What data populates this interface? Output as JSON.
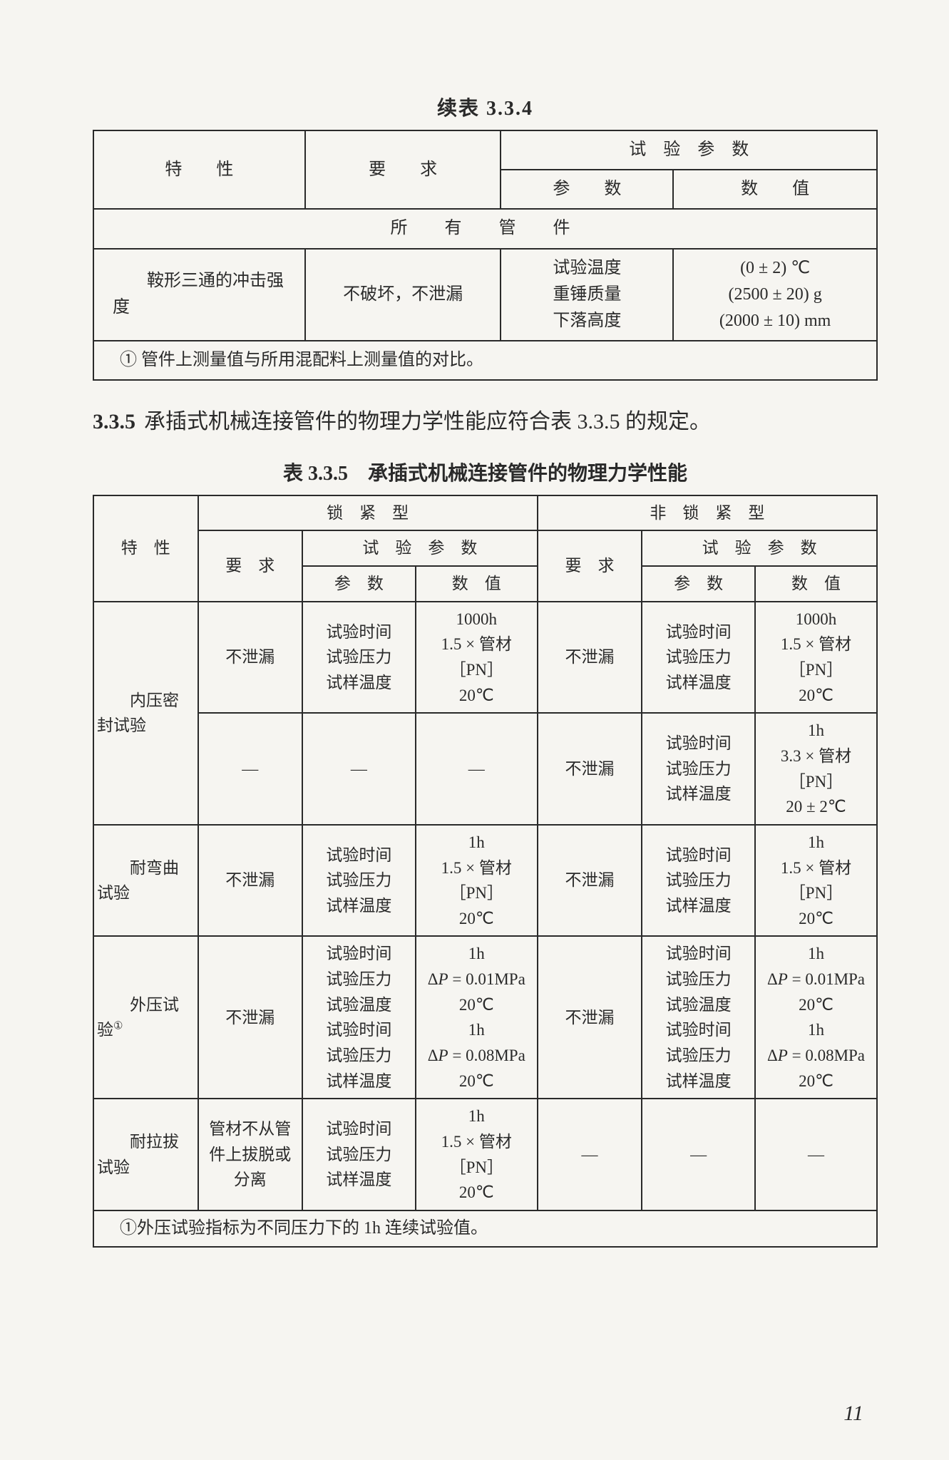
{
  "page_number": "11",
  "table334": {
    "caption": "续表 3.3.4",
    "head": {
      "c1": "特　　性",
      "c2": "要　　求",
      "c3": "试　验　参　数",
      "c3a": "参　　数",
      "c3b": "数　　值"
    },
    "section_row": "所　有　管　件",
    "row": {
      "c1": "　　鞍形三通的冲击强度",
      "c2": "不破坏，不泄漏",
      "c3a": "试验温度\n重锤质量\n下落高度",
      "c3b": "(0 ± 2) ℃\n(2500 ± 20) g\n(2000 ± 10) mm"
    },
    "note": "① 管件上测量值与所用混配料上测量值的对比。"
  },
  "para335": {
    "secnum": "3.3.5",
    "text": "承插式机械连接管件的物理力学性能应符合表 3.3.5 的规定。"
  },
  "table335": {
    "caption": "表 3.3.5　承插式机械连接管件的物理力学性能",
    "head": {
      "c_prop": "特　性",
      "grp_a": "锁　紧　型",
      "grp_b": "非　锁　紧　型",
      "req": "要　求",
      "testparam": "试　验　参　数",
      "param": "参　数",
      "value": "数　值"
    },
    "rows": [
      {
        "prop": "　　内压密封试验",
        "rowspan_prop": 2,
        "a_req": "不泄漏",
        "a_param": "试验时间\n试验压力\n试样温度",
        "a_value": "1000h\n1.5 × 管材［PN］\n20℃",
        "b_req": "不泄漏",
        "b_param": "试验时间\n试验压力\n试样温度",
        "b_value": "1000h\n1.5 × 管材［PN］\n20℃"
      },
      {
        "a_req": "—",
        "a_param": "—",
        "a_value": "—",
        "b_req": "不泄漏",
        "b_param": "试验时间\n试验压力\n试样温度",
        "b_value": "1h\n3.3 × 管材［PN］\n20 ± 2℃"
      },
      {
        "prop": "　　耐弯曲试验",
        "rowspan_prop": 1,
        "a_req": "不泄漏",
        "a_param": "试验时间\n试验压力\n试样温度",
        "a_value": "1h\n1.5 × 管材［PN］\n20℃",
        "b_req": "不泄漏",
        "b_param": "试验时间\n试验压力\n试样温度",
        "b_value": "1h\n1.5 × 管材［PN］\n20℃"
      },
      {
        "prop_html": "　　外压试验<sup>①</sup>",
        "rowspan_prop": 1,
        "a_req": "不泄漏",
        "a_param": "试验时间\n试验压力\n试验温度\n试验时间\n试验压力\n试样温度",
        "a_value_html": "1h\nΔ<span class='it'>P</span> = 0.01MPa\n20℃\n1h\nΔ<span class='it'>P</span> = 0.08MPa\n20℃",
        "b_req": "不泄漏",
        "b_param": "试验时间\n试验压力\n试验温度\n试验时间\n试验压力\n试样温度",
        "b_value_html": "1h\nΔ<span class='it'>P</span> = 0.01MPa\n20℃\n1h\nΔ<span class='it'>P</span> = 0.08MPa\n20℃"
      },
      {
        "prop": "　　耐拉拔试验",
        "rowspan_prop": 1,
        "a_req": "管材不从管件上拔脱或分离",
        "a_param": "试验时间\n试验压力\n试样温度",
        "a_value": "1h\n1.5 × 管材［PN］\n20℃",
        "b_req": "—",
        "b_param": "—",
        "b_value": "—"
      }
    ],
    "note": "①外压试验指标为不同压力下的 1h 连续试验值。"
  }
}
